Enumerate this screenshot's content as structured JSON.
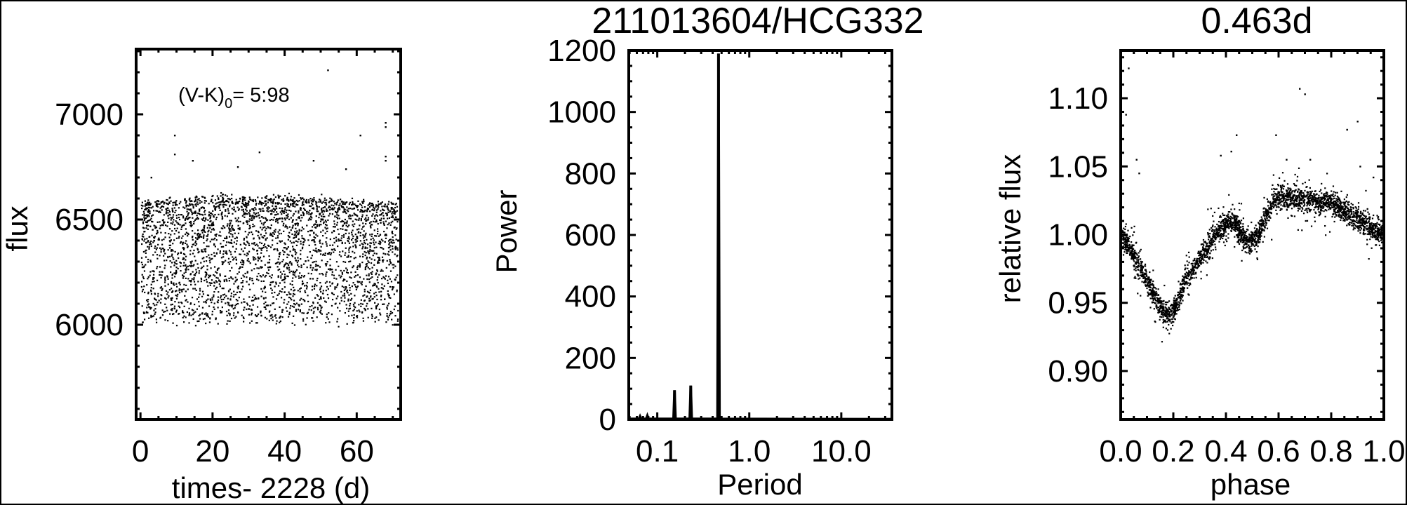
{
  "chart_data": [
    {
      "type": "scatter",
      "xlabel": "times- 2228 (d)",
      "ylabel": "flux",
      "annotation": {
        "text": "(V-K)",
        "subscript": "0",
        "suffix": "= 5:98"
      },
      "xlim": [
        -1.2,
        72.2
      ],
      "ylim": [
        5550,
        7310
      ],
      "xticks": [
        0,
        20,
        40,
        60
      ],
      "yticks": [
        6000,
        6500,
        7000
      ],
      "x_minor_step": 5,
      "y_minor_step": 100,
      "grid": false,
      "point_color": "#000000",
      "band": {
        "t_range": [
          0.3,
          71.5
        ],
        "upper_flux": [
          [
            0,
            6580
          ],
          [
            10,
            6590
          ],
          [
            20,
            6610
          ],
          [
            30,
            6600
          ],
          [
            40,
            6600
          ],
          [
            50,
            6590
          ],
          [
            60,
            6580
          ],
          [
            71.5,
            6570
          ]
        ],
        "lower_flux": 6010,
        "n_points": 3300
      },
      "outliers": [
        [
          0.5,
          7000
        ],
        [
          52,
          7210
        ],
        [
          9.5,
          6900
        ],
        [
          9.5,
          6810
        ],
        [
          68,
          6960
        ],
        [
          68,
          6940
        ],
        [
          68,
          6800
        ],
        [
          68,
          6780
        ],
        [
          33,
          6820
        ],
        [
          14.5,
          6780
        ],
        [
          61,
          6900
        ],
        [
          48,
          6780
        ],
        [
          3,
          6700
        ],
        [
          27,
          6750
        ],
        [
          57,
          6740
        ]
      ]
    },
    {
      "type": "line",
      "title": "211013604/HCG332",
      "xlabel": "Period",
      "ylabel": "Power",
      "xscale": "log",
      "xlim": [
        0.049,
        35.5
      ],
      "ylim": [
        0,
        1200
      ],
      "xticks": [
        0.1,
        1.0,
        10.0
      ],
      "xtick_labels": [
        "0.1",
        "1.0",
        "10.0"
      ],
      "yticks": [
        0,
        200,
        400,
        600,
        800,
        1000,
        1200
      ],
      "y_minor_step": 50,
      "grid": false,
      "peaks": [
        {
          "period": 0.065,
          "power": 10
        },
        {
          "period": 0.078,
          "power": 12
        },
        {
          "period": 0.154,
          "power": 95
        },
        {
          "period": 0.231,
          "power": 110
        },
        {
          "period": 0.463,
          "power": 1190
        }
      ]
    },
    {
      "type": "scatter",
      "title": "0.463d",
      "xlabel": "phase",
      "ylabel": "relative flux",
      "xlim": [
        0,
        1
      ],
      "ylim": [
        0.8645,
        1.135
      ],
      "xticks": [
        0.0,
        0.2,
        0.4,
        0.6,
        0.8,
        1.0
      ],
      "xtick_labels": [
        "0.0",
        "0.2",
        "0.4",
        "0.6",
        "0.8",
        "1.0"
      ],
      "yticks": [
        0.9,
        0.95,
        1.0,
        1.05,
        1.1
      ],
      "ytick_labels": [
        "0.90",
        "0.95",
        "1.00",
        "1.05",
        "1.10"
      ],
      "x_minor_step": 0.05,
      "y_minor_step": 0.01,
      "grid": false,
      "mean_curve": [
        [
          0,
          1.0
        ],
        [
          0.05,
          0.985
        ],
        [
          0.1,
          0.966
        ],
        [
          0.15,
          0.947
        ],
        [
          0.19,
          0.94
        ],
        [
          0.22,
          0.953
        ],
        [
          0.25,
          0.967
        ],
        [
          0.3,
          0.982
        ],
        [
          0.35,
          0.997
        ],
        [
          0.4,
          1.008
        ],
        [
          0.43,
          1.01
        ],
        [
          0.46,
          1.0
        ],
        [
          0.49,
          0.993
        ],
        [
          0.52,
          0.998
        ],
        [
          0.55,
          1.012
        ],
        [
          0.58,
          1.025
        ],
        [
          0.62,
          1.028
        ],
        [
          0.7,
          1.026
        ],
        [
          0.8,
          1.022
        ],
        [
          0.9,
          1.012
        ],
        [
          1.0,
          1.0
        ]
      ],
      "scatter_sigma": 0.004,
      "n_points": 3000,
      "outliers": [
        [
          0.03,
          1.122
        ],
        [
          0.02,
          1.088
        ],
        [
          0.06,
          1.055
        ],
        [
          0.07,
          1.045
        ],
        [
          0.44,
          1.073
        ],
        [
          0.42,
          1.061
        ],
        [
          0.38,
          1.058
        ],
        [
          0.59,
          1.073
        ],
        [
          0.68,
          1.107
        ],
        [
          0.7,
          1.103
        ],
        [
          0.86,
          1.077
        ],
        [
          0.9,
          1.083
        ],
        [
          0.91,
          1.05
        ],
        [
          0.96,
          1.042
        ],
        [
          0.72,
          1.055
        ],
        [
          0.63,
          1.055
        ]
      ]
    }
  ]
}
